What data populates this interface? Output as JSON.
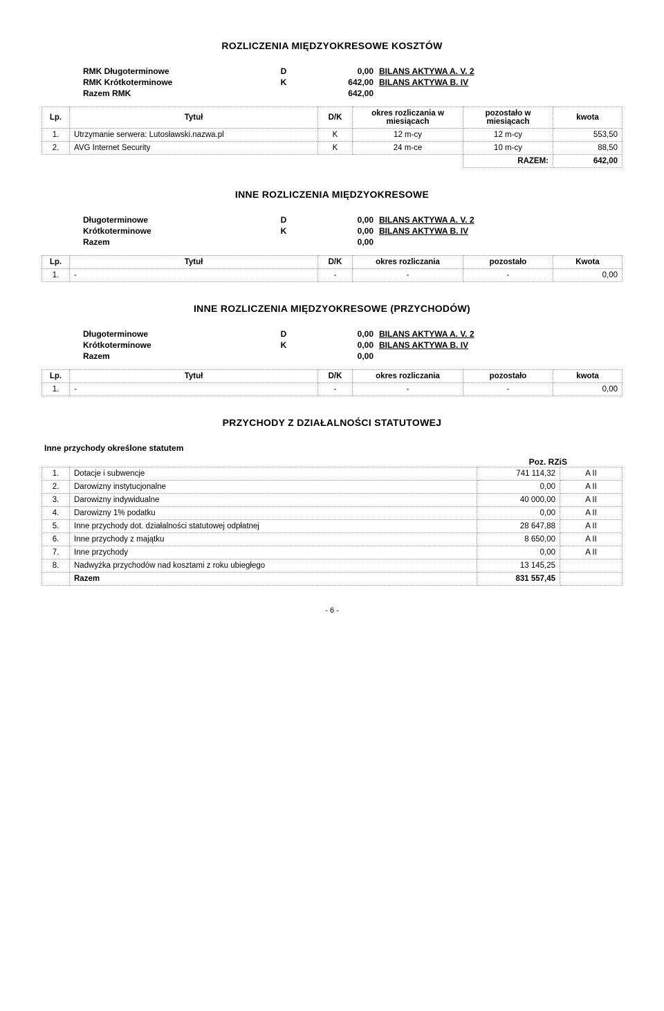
{
  "sec1": {
    "heading": "ROZLICZENIA MIĘDZYOKRESOWE KOSZTÓW",
    "rows": [
      {
        "label": "RMK Długoterminowe",
        "dk": "D",
        "val": "0,00",
        "ref": "BILANS AKTYWA  A. V. 2"
      },
      {
        "label": "RMK Krótkoterminowe",
        "dk": "K",
        "val": "642,00",
        "ref": "BILANS AKTYWA   B. IV"
      },
      {
        "label": "Razem RMK",
        "dk": "",
        "val": "642,00",
        "ref": ""
      }
    ],
    "thead": {
      "lp": "Lp.",
      "title": "Tytuł",
      "dk": "D/K",
      "okres": "okres rozliczania w miesiącach",
      "pozostalo": "pozostało w miesiącach",
      "kwota": "kwota"
    },
    "data": [
      {
        "lp": "1.",
        "title": "Utrzymanie serwera: Lutosławski.nazwa.pl",
        "dk": "K",
        "okres": "12 m-cy",
        "pozostalo": "12 m-cy",
        "kwota": "553,50"
      },
      {
        "lp": "2.",
        "title": "AVG Internet Security",
        "dk": "K",
        "okres": "24 m-ce",
        "pozostalo": "10 m-cy",
        "kwota": "88,50"
      }
    ],
    "razem_label": "RAZEM:",
    "razem_val": "642,00"
  },
  "sec2": {
    "heading": "INNE ROZLICZENIA MIĘDZYOKRESOWE",
    "rows": [
      {
        "label": "Długoterminowe",
        "dk": "D",
        "val": "0,00",
        "ref": "BILANS AKTYWA  A. V. 2"
      },
      {
        "label": "Krótkoterminowe",
        "dk": "K",
        "val": "0,00",
        "ref": "BILANS AKTYWA   B. IV"
      },
      {
        "label": "Razem",
        "dk": "",
        "val": "0,00",
        "ref": ""
      }
    ],
    "thead": {
      "lp": "Lp.",
      "title": "Tytuł",
      "dk": "D/K",
      "okres": "okres rozliczania",
      "pozostalo": "pozostało",
      "kwota": "Kwota"
    },
    "data": [
      {
        "lp": "1.",
        "title": "-",
        "dk": "-",
        "okres": "-",
        "pozostalo": "-",
        "kwota": "0,00"
      }
    ]
  },
  "sec3": {
    "heading": "INNE ROZLICZENIA MIĘDZYOKRESOWE (PRZYCHODÓW)",
    "rows": [
      {
        "label": "Długoterminowe",
        "dk": "D",
        "val": "0,00",
        "ref": "BILANS AKTYWA  A. V. 2"
      },
      {
        "label": "Krótkoterminowe",
        "dk": "K",
        "val": "0,00",
        "ref": "BILANS AKTYWA   B. IV"
      },
      {
        "label": "Razem",
        "dk": "",
        "val": "0,00",
        "ref": ""
      }
    ],
    "thead": {
      "lp": "Lp.",
      "title": "Tytuł",
      "dk": "D/K",
      "okres": "okres rozliczania",
      "pozostalo": "pozostało",
      "kwota": "kwota"
    },
    "data": [
      {
        "lp": "1.",
        "title": "-",
        "dk": "-",
        "okres": "-",
        "pozostalo": "-",
        "kwota": "0,00"
      }
    ]
  },
  "sec4": {
    "heading": "PRZYCHODY  Z  DZIAŁALNOŚCI  STATUTOWEJ",
    "sub": "Inne przychody określone statutem",
    "poz": "Poz. RZiS",
    "data": [
      {
        "lp": "1.",
        "title": "Dotacje i subwencje",
        "val": "741 114,32",
        "poz": "A II"
      },
      {
        "lp": "2.",
        "title": "Darowizny instytucjonalne",
        "val": "0,00",
        "poz": "A II"
      },
      {
        "lp": "3.",
        "title": "Darowizny indywidualne",
        "val": "40 000,00",
        "poz": "A II"
      },
      {
        "lp": "4.",
        "title": "Darowizny 1% podatku",
        "val": "0,00",
        "poz": "A II"
      },
      {
        "lp": "5.",
        "title": "Inne przychody dot. działalności statutowej odpłatnej",
        "val": "28 647,88",
        "poz": "A II"
      },
      {
        "lp": "6.",
        "title": "Inne przychody z majątku",
        "val": "8 650,00",
        "poz": "A II"
      },
      {
        "lp": "7.",
        "title": "Inne przychody",
        "val": "0,00",
        "poz": "A II"
      },
      {
        "lp": "8.",
        "title": "Nadwyżka przychodów nad kosztami z roku ubiegłego",
        "val": "13 145,25",
        "poz": ""
      }
    ],
    "razem_label": "Razem",
    "razem_val": "831 557,45"
  },
  "pagefoot": "- 6 -",
  "colwidths": {
    "lp": "40px",
    "title": "auto",
    "dk": "50px",
    "okres": "160px",
    "pozostalo": "130px",
    "kwota": "100px"
  },
  "colors": {
    "border": "#999999",
    "text": "#000000",
    "bg": "#ffffff"
  }
}
